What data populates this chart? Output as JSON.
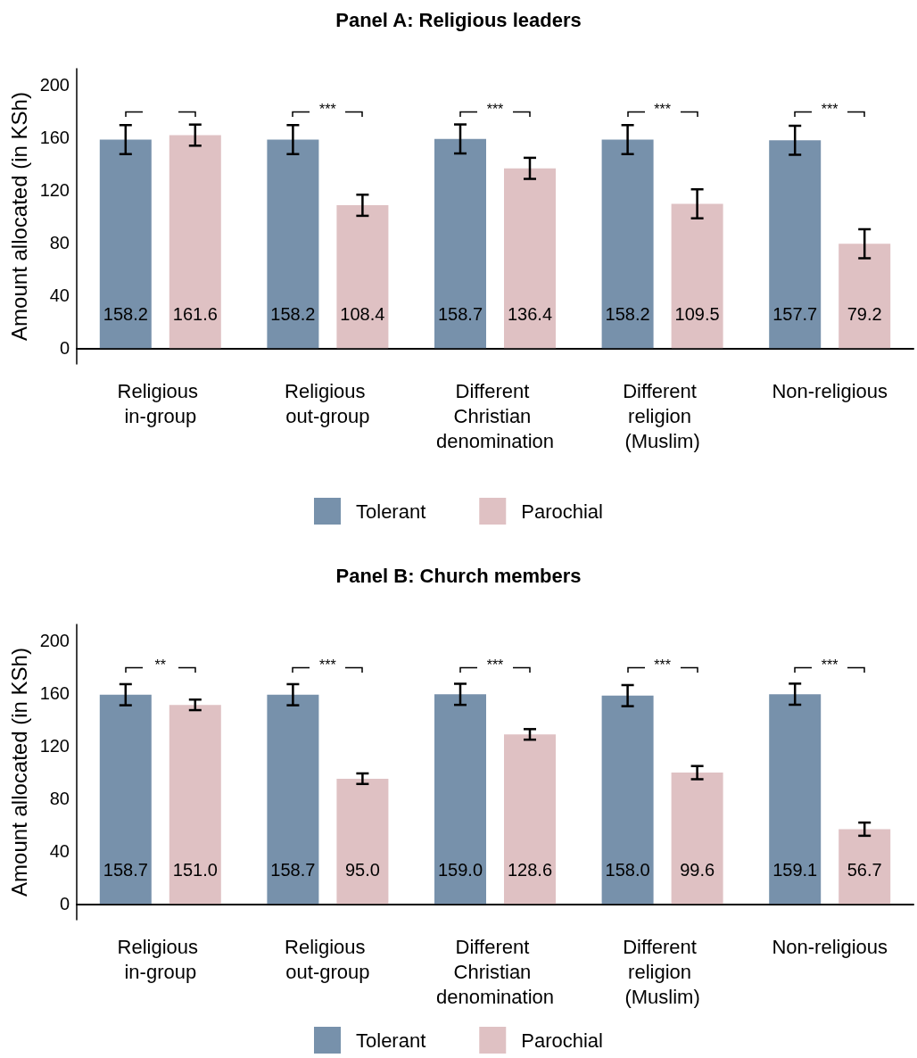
{
  "chart_data": [
    {
      "type": "bar",
      "title": "Panel A: Religious leaders",
      "ylabel": "Amount allocated (in KSh)",
      "categories": [
        "Religious in-group",
        "Religious out-group",
        "Different Christian denomination",
        "Different religion (Muslim)",
        "Non-religious"
      ],
      "series": [
        {
          "name": "Tolerant",
          "color": "#7791ab",
          "values": [
            158.2,
            158.2,
            158.7,
            158.2,
            157.7
          ],
          "errors": [
            11,
            11,
            11,
            11,
            11
          ],
          "value_labels": [
            "158.2",
            "158.2",
            "158.7",
            "158.2",
            "157.7"
          ]
        },
        {
          "name": "Parochial",
          "color": "#dfc1c3",
          "values": [
            161.6,
            108.4,
            136.4,
            109.5,
            79.2
          ],
          "errors": [
            8,
            8,
            8,
            11,
            11
          ],
          "value_labels": [
            "161.6",
            "108.4",
            "136.4",
            "109.5",
            "79.2"
          ]
        }
      ],
      "ylim": [
        -12,
        212
      ],
      "yticks": [
        0,
        40,
        80,
        120,
        160,
        200
      ],
      "legend": "bottom",
      "grid": false,
      "annotations": [
        "***",
        "***",
        "***",
        "***"
      ]
    },
    {
      "type": "bar",
      "title": "Panel B: Church members",
      "ylabel": "Amount allocated (in KSh)",
      "categories": [
        "Religious in-group",
        "Religious out-group",
        "Different Christian denomination",
        "Different religion (Muslim)",
        "Non-religious"
      ],
      "series": [
        {
          "name": "Tolerant",
          "color": "#7791ab",
          "values": [
            158.7,
            158.7,
            159.0,
            158.0,
            159.1
          ],
          "errors": [
            8,
            8,
            8,
            8,
            8
          ],
          "value_labels": [
            "158.7",
            "158.7",
            "159.0",
            "158.0",
            "159.1"
          ]
        },
        {
          "name": "Parochial",
          "color": "#dfc1c3",
          "values": [
            151.0,
            95.0,
            128.6,
            99.6,
            56.7
          ],
          "errors": [
            4,
            4,
            4,
            5,
            5
          ],
          "value_labels": [
            "151.0",
            "95.0",
            "128.6",
            "99.6",
            "56.7"
          ]
        }
      ],
      "ylim": [
        -12,
        212
      ],
      "yticks": [
        0,
        40,
        80,
        120,
        160,
        200
      ],
      "legend": "bottom",
      "grid": false,
      "annotations": [
        "**",
        "***",
        "***",
        "***",
        "***"
      ]
    }
  ]
}
